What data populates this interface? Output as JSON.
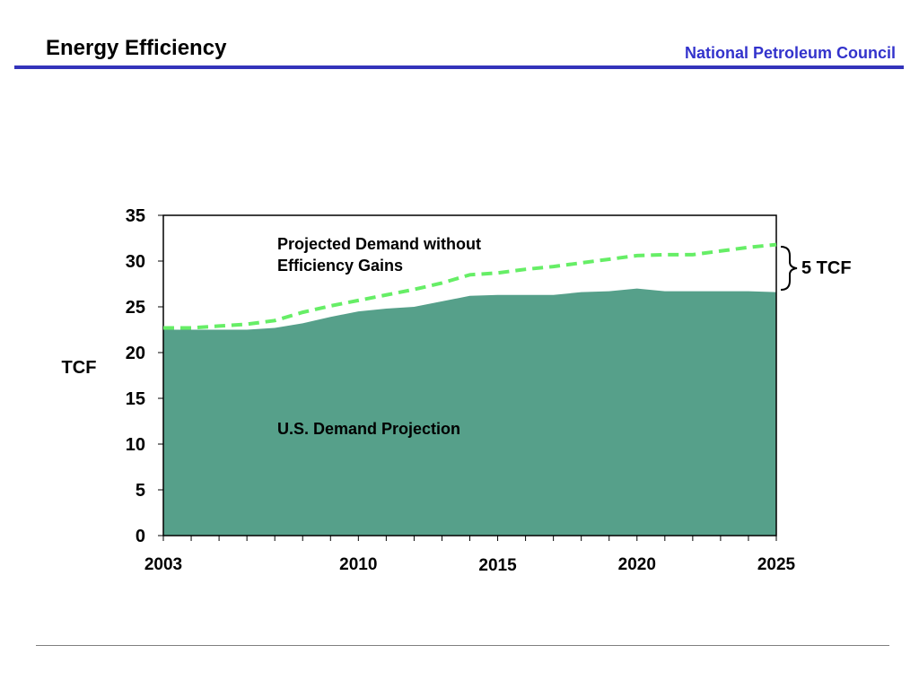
{
  "header": {
    "title": "Energy Efficiency",
    "organization": "National Petroleum Council",
    "organization_color": "#3333cc",
    "rule_color": "#3333bb"
  },
  "chart_data": {
    "type": "area",
    "ylabel": "TCF",
    "ylim": [
      0,
      35
    ],
    "y_ticks": [
      0,
      5,
      10,
      15,
      20,
      25,
      30,
      35
    ],
    "xlim": [
      2003,
      2025
    ],
    "x_tick_labels": [
      "2003",
      "2010",
      "2015",
      "2020",
      "2025"
    ],
    "x_tick_values": [
      2003,
      2010,
      2015,
      2020,
      2025
    ],
    "x": [
      2003,
      2004,
      2005,
      2006,
      2007,
      2008,
      2009,
      2010,
      2011,
      2012,
      2013,
      2014,
      2015,
      2016,
      2017,
      2018,
      2019,
      2020,
      2021,
      2022,
      2023,
      2024,
      2025
    ],
    "series": [
      {
        "name": "U.S. Demand Projection",
        "style": "filled-area",
        "color": "#56a08a",
        "values": [
          22.5,
          22.5,
          22.5,
          22.5,
          22.7,
          23.2,
          23.9,
          24.5,
          24.8,
          25.0,
          25.6,
          26.2,
          26.3,
          26.3,
          26.3,
          26.6,
          26.7,
          27.0,
          26.7,
          26.7,
          26.7,
          26.7,
          26.6
        ]
      },
      {
        "name": "Projected Demand without Efficiency Gains",
        "style": "dashed-line",
        "color": "#66ee66",
        "values": [
          22.7,
          22.7,
          22.9,
          23.1,
          23.5,
          24.4,
          25.1,
          25.7,
          26.3,
          26.9,
          27.6,
          28.5,
          28.7,
          29.1,
          29.4,
          29.8,
          30.2,
          30.6,
          30.7,
          30.7,
          31.1,
          31.5,
          31.8
        ]
      }
    ],
    "annotations": {
      "upper_label_line1": "Projected Demand without",
      "upper_label_line2": "Efficiency Gains",
      "area_label": "U.S. Demand Projection",
      "gap_label": "5 TCF"
    },
    "grid": false
  }
}
